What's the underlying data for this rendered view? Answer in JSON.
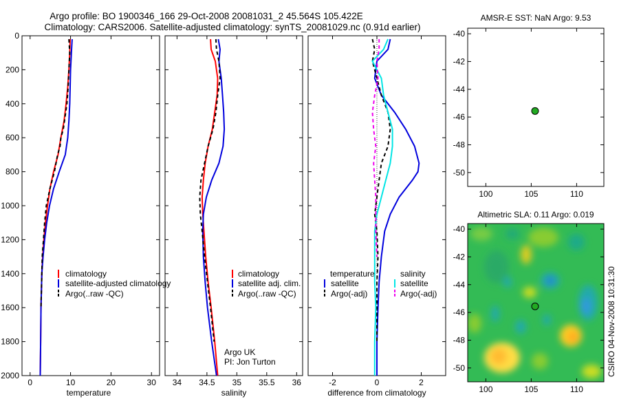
{
  "header": {
    "line1": "Argo profile: BO 1900346_166 29-Oct-2008 20081031_2 45.564S 105.422E",
    "line2": "Climatology: CARS2006. Satellite-adjusted climatology: synTS_20081029.nc (0.91d earlier)"
  },
  "footer": {
    "credit": "CSIRO 04-Nov-2008 10:31:30"
  },
  "colors": {
    "climatology": "#ff0000",
    "satellite": "#0000dd",
    "argo": "#000000",
    "cyan": "#00e5e5",
    "magenta": "#ee00ee",
    "marker": "#22aa22",
    "sla_field": "#33bb55"
  },
  "chart_data": [
    {
      "id": "temperature",
      "type": "line",
      "xlabel": "temperature",
      "ylabel": "",
      "xlim": [
        -2,
        32
      ],
      "ylim": [
        2000,
        0
      ],
      "xticks": [
        0,
        10,
        20,
        30
      ],
      "yticks": [
        0,
        200,
        400,
        600,
        800,
        1000,
        1200,
        1400,
        1600,
        1800,
        2000
      ],
      "legend": [
        "climatology",
        "satellite-adjusted climatology",
        "Argo(..raw -QC)"
      ],
      "series": [
        {
          "name": "climatology",
          "color": "#ff0000",
          "dash": "solid",
          "depth": [
            20,
            100,
            200,
            300,
            400,
            500,
            600,
            700,
            800,
            900,
            1000,
            1100,
            1200,
            1300,
            1400,
            1500,
            1600,
            1800,
            2000
          ],
          "values": [
            9.9,
            9.8,
            9.6,
            9.3,
            8.9,
            8.4,
            7.6,
            6.9,
            5.8,
            4.9,
            4.3,
            3.8,
            3.4,
            3.1,
            2.9,
            2.8,
            2.7,
            2.6,
            2.5
          ]
        },
        {
          "name": "satellite-adjusted climatology",
          "color": "#0000dd",
          "dash": "solid",
          "depth": [
            20,
            100,
            200,
            300,
            400,
            500,
            600,
            700,
            800,
            900,
            1000,
            1100,
            1200,
            1300,
            1400,
            1500,
            1600,
            1800,
            2000
          ],
          "values": [
            10.4,
            10.2,
            10.0,
            9.9,
            9.8,
            9.6,
            9.3,
            8.7,
            7.2,
            5.8,
            4.8,
            4.1,
            3.6,
            3.2,
            2.9,
            2.8,
            2.7,
            2.6,
            2.5
          ]
        },
        {
          "name": "Argo(..raw -QC)",
          "color": "#000000",
          "dash": "5,4",
          "depth": [
            20,
            100,
            200,
            300,
            400,
            500,
            550,
            600,
            650,
            700,
            800,
            900,
            1000,
            1100,
            1200,
            1300,
            1400,
            1500,
            1600
          ],
          "values": [
            9.6,
            9.8,
            9.6,
            9.4,
            9.1,
            8.5,
            8.2,
            7.6,
            7.4,
            6.8,
            6.0,
            4.9,
            4.0,
            3.6,
            3.3,
            3.0,
            2.9,
            2.8,
            2.7
          ]
        }
      ]
    },
    {
      "id": "salinity",
      "type": "line",
      "xlabel": "salinity",
      "ylabel": "",
      "xlim": [
        33.8,
        36.1
      ],
      "ylim": [
        2000,
        0
      ],
      "xticks": [
        34,
        34.5,
        35,
        35.5,
        36
      ],
      "legend": [
        "climatology",
        "satellite adj. clim.",
        "Argo(..raw -QC)"
      ],
      "annotation": [
        "Argo UK",
        "PI: Jon Turton"
      ],
      "series": [
        {
          "name": "climatology",
          "color": "#ff0000",
          "dash": "solid",
          "depth": [
            20,
            80,
            150,
            250,
            350,
            450,
            550,
            650,
            750,
            850,
            950,
            1050,
            1150,
            1300,
            1450,
            1600,
            1800,
            2000
          ],
          "values": [
            34.56,
            34.57,
            34.64,
            34.68,
            34.67,
            34.63,
            34.59,
            34.52,
            34.47,
            34.44,
            34.42,
            34.43,
            34.45,
            34.48,
            34.52,
            34.57,
            34.63,
            34.68
          ]
        },
        {
          "name": "satellite adj. clim.",
          "color": "#0000dd",
          "dash": "solid",
          "depth": [
            20,
            80,
            150,
            250,
            350,
            450,
            550,
            650,
            750,
            850,
            950,
            1050,
            1150,
            1300,
            1450,
            1600,
            1800,
            2000
          ],
          "values": [
            34.69,
            34.72,
            34.7,
            34.74,
            34.76,
            34.78,
            34.79,
            34.77,
            34.7,
            34.58,
            34.49,
            34.44,
            34.43,
            34.44,
            34.47,
            34.51,
            34.58,
            34.66
          ]
        },
        {
          "name": "Argo(..raw -QC)",
          "color": "#000000",
          "dash": "5,4",
          "depth": [
            20,
            80,
            150,
            250,
            350,
            450,
            550,
            650,
            750,
            850,
            950,
            1050,
            1150,
            1300,
            1450,
            1600,
            1800
          ],
          "values": [
            34.65,
            34.66,
            34.7,
            34.72,
            34.68,
            34.65,
            34.6,
            34.52,
            34.46,
            34.4,
            34.38,
            34.39,
            34.42,
            34.46,
            34.51,
            34.56,
            34.62
          ]
        }
      ]
    },
    {
      "id": "difference",
      "type": "line",
      "xlabel": "difference from climatology",
      "ylabel": "",
      "xlim": [
        -3.1,
        3.1
      ],
      "ylim": [
        2000,
        0
      ],
      "xticks": [
        -2,
        0,
        2
      ],
      "legend_left": {
        "title": "temperature",
        "items": [
          "satellite",
          "Argo(-adj)"
        ]
      },
      "legend_right": {
        "title": "salinity",
        "items": [
          "satellite",
          "Argo(-adj)"
        ]
      },
      "series": [
        {
          "name": "temperature satellite",
          "color": "#0000dd",
          "dash": "solid",
          "depth": [
            20,
            80,
            150,
            250,
            350,
            450,
            550,
            650,
            750,
            800,
            850,
            950,
            1050,
            1150,
            1300,
            1450,
            1600,
            1800,
            2000
          ],
          "values": [
            0.6,
            0.5,
            0.0,
            -0.1,
            0.2,
            0.8,
            1.3,
            1.7,
            1.9,
            1.85,
            1.6,
            1.0,
            0.6,
            0.35,
            0.2,
            0.1,
            0.05,
            0.0,
            0.0
          ]
        },
        {
          "name": "temperature Argo(-adj)",
          "color": "#000000",
          "dash": "5,4",
          "depth": [
            20,
            80,
            150,
            250,
            350,
            450,
            550,
            650,
            750,
            850,
            950,
            1050,
            1150,
            1300,
            1450,
            1600,
            1800
          ],
          "values": [
            -0.2,
            -0.1,
            -0.2,
            0.0,
            0.2,
            0.5,
            0.6,
            0.5,
            0.2,
            0.1,
            0.0,
            -0.1,
            0.0,
            0.05,
            0.0,
            0.0,
            0.0
          ]
        },
        {
          "name": "salinity satellite",
          "color": "#00e5e5",
          "dash": "solid",
          "depth": [
            20,
            80,
            150,
            250,
            350,
            450,
            550,
            650,
            750,
            850,
            950,
            1050,
            1150,
            1300,
            1450,
            1600,
            1800,
            2000
          ],
          "values": [
            0.5,
            0.3,
            -0.2,
            0.2,
            0.3,
            0.5,
            0.7,
            0.7,
            0.6,
            0.4,
            0.2,
            0.0,
            -0.1,
            -0.1,
            -0.1,
            -0.05,
            -0.1,
            -0.1
          ]
        },
        {
          "name": "salinity Argo(-adj)",
          "color": "#ee00ee",
          "dash": "5,4",
          "depth": [
            20,
            80,
            150,
            250,
            350,
            450,
            550,
            650,
            750,
            850,
            950,
            1050,
            1150,
            1300
          ],
          "values": [
            0.1,
            0.1,
            0.0,
            0.05,
            -0.1,
            -0.2,
            -0.15,
            -0.05,
            -0.15,
            -0.1,
            -0.05,
            -0.05,
            -0.05,
            0.0
          ]
        }
      ]
    },
    {
      "id": "amsr",
      "type": "scatter",
      "title": "AMSR-E SST: NaN Argo: 9.53",
      "xlim": [
        98,
        113
      ],
      "ylim": [
        -51,
        -39.6
      ],
      "xticks": [
        100,
        105,
        110
      ],
      "yticks": [
        -40,
        -42,
        -44,
        -46,
        -48,
        -50
      ],
      "points": [
        {
          "x": 105.422,
          "y": -45.564
        }
      ]
    },
    {
      "id": "sla",
      "type": "heatmap",
      "title": "Altimetric SLA: 0.11 Argo: 0.019",
      "xlim": [
        98,
        113
      ],
      "ylim": [
        -51,
        -39.6
      ],
      "xticks": [
        100,
        105,
        110
      ],
      "yticks": [
        -40,
        -42,
        -44,
        -46,
        -48,
        -50
      ],
      "points": [
        {
          "x": 105.422,
          "y": -45.564
        }
      ]
    }
  ]
}
